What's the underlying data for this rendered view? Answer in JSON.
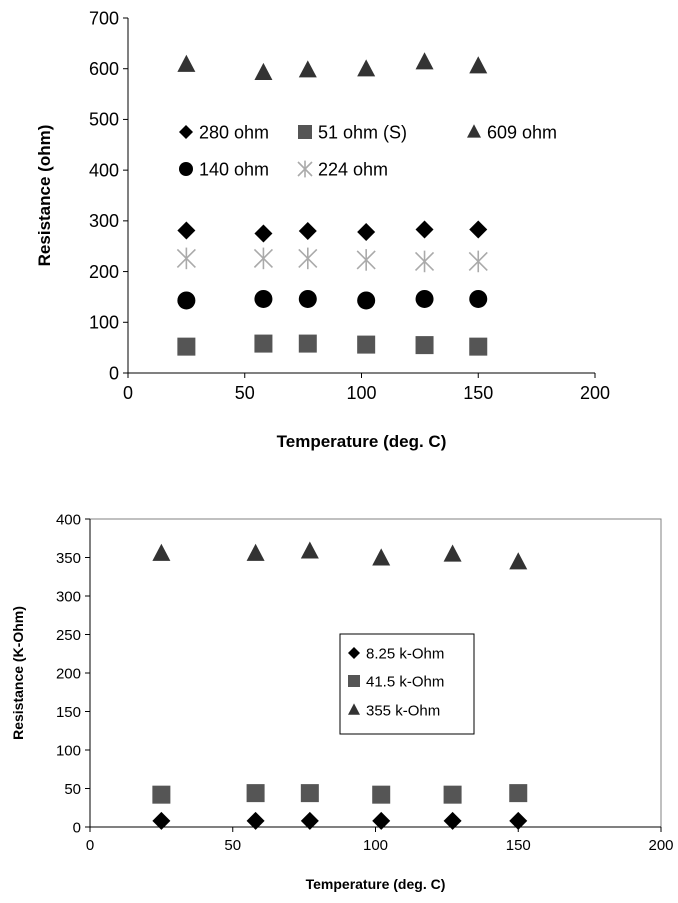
{
  "chart_data": [
    {
      "type": "scatter",
      "xlabel": "Temperature (deg. C)",
      "ylabel": "Resistance (ohm)",
      "xlim": [
        0,
        200
      ],
      "ylim": [
        0,
        700
      ],
      "xticks": [
        "0",
        "50",
        "100",
        "150",
        "200"
      ],
      "yticks": [
        "0",
        "100",
        "200",
        "300",
        "400",
        "500",
        "600",
        "700"
      ],
      "grid": false,
      "legend_position": "center-upper, inside plot, no frame",
      "x": [
        25,
        58,
        77,
        102,
        127,
        150
      ],
      "series": [
        {
          "name": "280 ohm",
          "marker": "diamond",
          "color": "#000000",
          "values": [
            281,
            275,
            280,
            278,
            283,
            283
          ]
        },
        {
          "name": "51 ohm (S)",
          "marker": "square",
          "color": "#555555",
          "values": [
            52,
            58,
            58,
            56,
            55,
            52
          ]
        },
        {
          "name": "609 ohm",
          "marker": "triangle",
          "color": "#333333",
          "values": [
            608,
            592,
            597,
            599,
            613,
            605
          ]
        },
        {
          "name": "140 ohm",
          "marker": "circle",
          "color": "#000000",
          "values": [
            143,
            146,
            146,
            143,
            146,
            146
          ]
        },
        {
          "name": "224 ohm",
          "marker": "asterisk",
          "color": "#aaaaaa",
          "values": [
            226,
            226,
            226,
            223,
            220,
            220
          ]
        }
      ]
    },
    {
      "type": "scatter",
      "xlabel": "Temperature (deg. C)",
      "ylabel": "Resistance (K-Ohm)",
      "xlim": [
        0,
        200
      ],
      "ylim": [
        0,
        400
      ],
      "xticks": [
        "0",
        "50",
        "100",
        "150",
        "200"
      ],
      "yticks": [
        "0",
        "50",
        "100",
        "150",
        "200",
        "250",
        "300",
        "350",
        "400"
      ],
      "grid": false,
      "legend_position": "center-right, inside plot, framed",
      "x": [
        25,
        58,
        77,
        102,
        127,
        150
      ],
      "series": [
        {
          "name": "8.25 k-Ohm",
          "marker": "diamond",
          "color": "#000000",
          "values": [
            8,
            8,
            8,
            8,
            8,
            8
          ]
        },
        {
          "name": "41.5 k-Ohm",
          "marker": "square",
          "color": "#555555",
          "values": [
            42,
            44,
            44,
            42,
            42,
            44
          ]
        },
        {
          "name": "355 k-Ohm",
          "marker": "triangle",
          "color": "#333333",
          "values": [
            355,
            355,
            358,
            349,
            354,
            344
          ]
        }
      ]
    }
  ]
}
